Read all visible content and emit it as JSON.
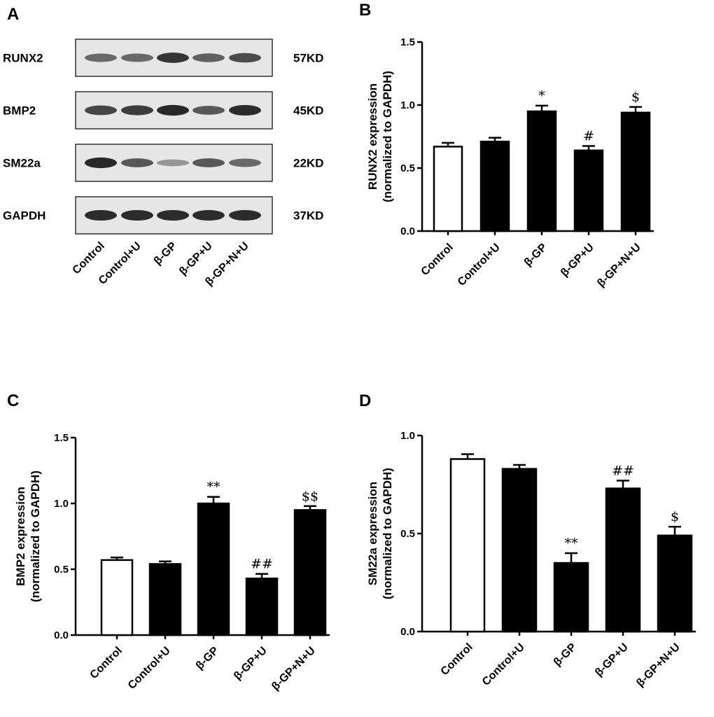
{
  "panel_a": {
    "letter": "A",
    "blots": [
      {
        "protein": "RUNX2",
        "size": "57KD",
        "intensities": [
          0.55,
          0.55,
          0.85,
          0.6,
          0.72
        ]
      },
      {
        "protein": "BMP2",
        "size": "45KD",
        "intensities": [
          0.75,
          0.8,
          0.92,
          0.65,
          0.9
        ]
      },
      {
        "protein": "SM22a",
        "size": "22KD",
        "intensities": [
          0.92,
          0.65,
          0.3,
          0.65,
          0.55
        ]
      },
      {
        "protein": "GAPDH",
        "size": "37KD",
        "intensities": [
          0.9,
          0.9,
          0.9,
          0.9,
          0.9
        ]
      }
    ],
    "lanes": [
      "Control",
      "Control+U",
      "β-GP",
      "β-GP+U",
      "β-GP+N+U"
    ]
  },
  "chart_data": [
    {
      "panel": "B",
      "type": "bar",
      "categories": [
        "Control",
        "Control+U",
        "β-GP",
        "β-GP+U",
        "β-GP+N+U"
      ],
      "values": [
        0.67,
        0.71,
        0.95,
        0.64,
        0.94
      ],
      "errors": [
        0.03,
        0.03,
        0.045,
        0.035,
        0.045
      ],
      "annotations": [
        "",
        "",
        "*",
        "#",
        "$"
      ],
      "ylabel_line1": "RUNX2 expression",
      "ylabel_line2": "(normalized to GAPDH)",
      "ylim": [
        0,
        1.5
      ],
      "yticks": [
        0.0,
        0.5,
        1.0,
        1.5
      ],
      "ytick_labels": [
        "0.0",
        "0.5",
        "1.0",
        "1.5"
      ],
      "bar_fills": [
        "#ffffff",
        "#000000",
        "#000000",
        "#000000",
        "#000000"
      ]
    },
    {
      "panel": "C",
      "type": "bar",
      "categories": [
        "Control",
        "Control+U",
        "β-GP",
        "β-GP+U",
        "β-GP+N+U"
      ],
      "values": [
        0.57,
        0.54,
        1.0,
        0.43,
        0.95
      ],
      "errors": [
        0.02,
        0.02,
        0.05,
        0.035,
        0.03
      ],
      "annotations": [
        "",
        "",
        "**",
        "##",
        "$$"
      ],
      "ylabel_line1": "BMP2 expression",
      "ylabel_line2": "(normalized to GAPDH)",
      "ylim": [
        0,
        1.5
      ],
      "yticks": [
        0.0,
        0.5,
        1.0,
        1.5
      ],
      "ytick_labels": [
        "0.0",
        "0.5",
        "1.0",
        "1.5"
      ],
      "bar_fills": [
        "#ffffff",
        "#000000",
        "#000000",
        "#000000",
        "#000000"
      ]
    },
    {
      "panel": "D",
      "type": "bar",
      "categories": [
        "Control",
        "Control+U",
        "β-GP",
        "β-GP+U",
        "β-GP+N+U"
      ],
      "values": [
        0.88,
        0.83,
        0.35,
        0.73,
        0.49
      ],
      "errors": [
        0.025,
        0.02,
        0.05,
        0.04,
        0.045
      ],
      "annotations": [
        "",
        "",
        "**",
        "##",
        "$"
      ],
      "ylabel_line1": "SM22a expression",
      "ylabel_line2": "(normalized to GAPDH)",
      "ylim": [
        0,
        1.0
      ],
      "yticks": [
        0.0,
        0.5,
        1.0
      ],
      "ytick_labels": [
        "0.0",
        "0.5",
        "1.0"
      ],
      "bar_fills": [
        "#ffffff",
        "#000000",
        "#000000",
        "#000000",
        "#000000"
      ]
    }
  ]
}
